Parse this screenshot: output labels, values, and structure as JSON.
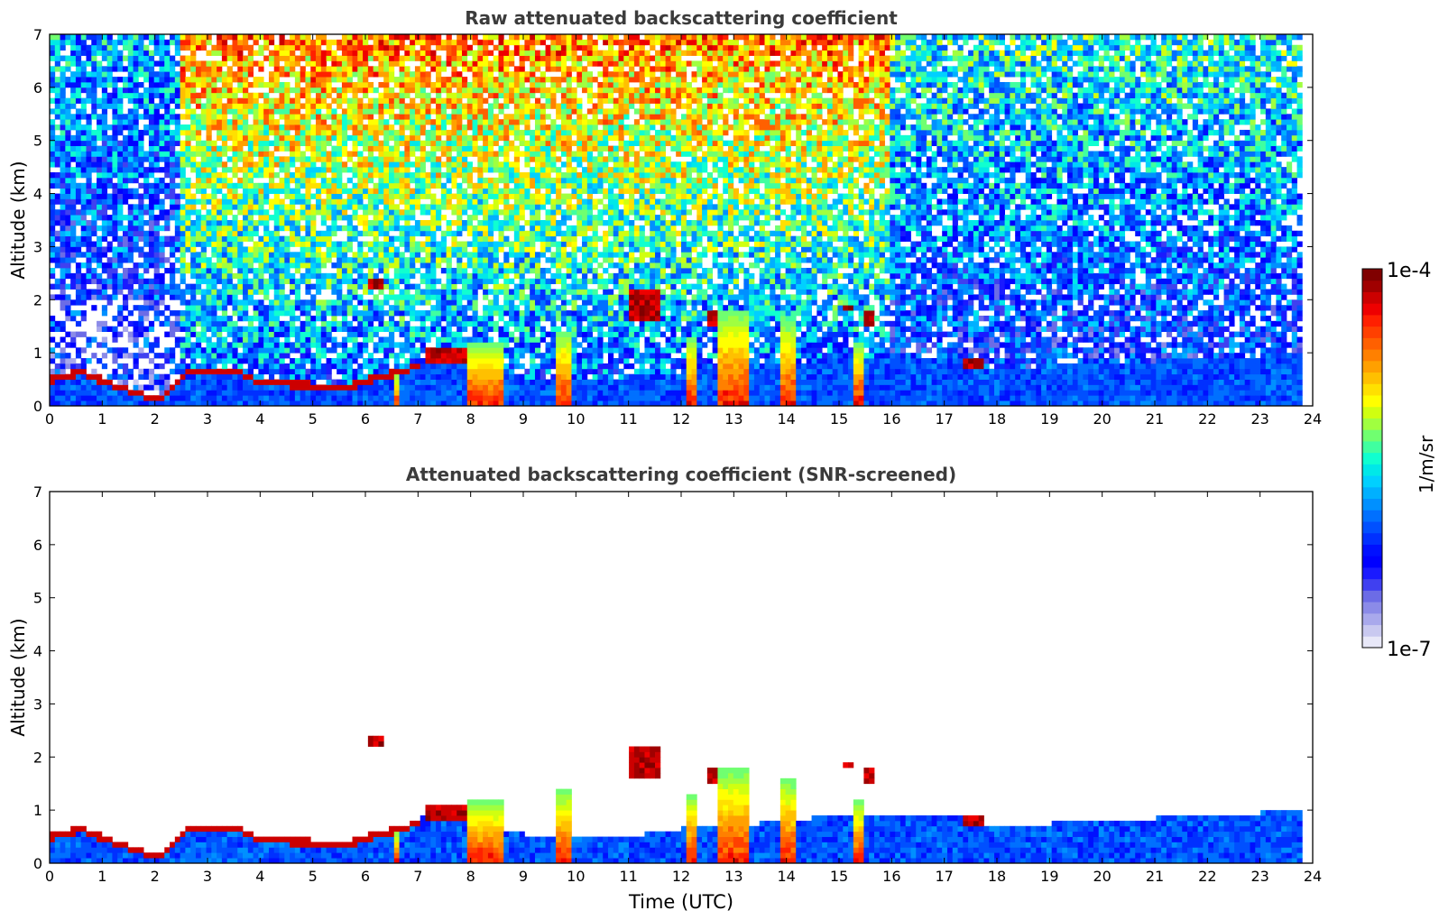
{
  "chart_data": [
    {
      "type": "heatmap",
      "title": "Raw attenuated backscattering coefficient",
      "xlabel": "",
      "ylabel": "Altitude (km)",
      "xlim": [
        0,
        24
      ],
      "ylim": [
        0,
        7
      ],
      "xticks": [
        "0",
        "1",
        "2",
        "3",
        "4",
        "5",
        "6",
        "7",
        "8",
        "9",
        "10",
        "11",
        "12",
        "13",
        "14",
        "15",
        "16",
        "17",
        "18",
        "19",
        "20",
        "21",
        "22",
        "23",
        "24"
      ],
      "yticks": [
        "0",
        "1",
        "2",
        "3",
        "4",
        "5",
        "6",
        "7"
      ],
      "data_end_time": 23.8,
      "colorscale": "jet (log)",
      "screened": false,
      "boundary_layer_top_km": [
        [
          0,
          0.55
        ],
        [
          0.6,
          0.7
        ],
        [
          1.2,
          0.45
        ],
        [
          1.8,
          0.25
        ],
        [
          2.2,
          0.25
        ],
        [
          2.6,
          0.7
        ],
        [
          3.5,
          0.75
        ],
        [
          4,
          0.5
        ],
        [
          5,
          0.45
        ],
        [
          5.8,
          0.45
        ],
        [
          6.2,
          0.6
        ],
        [
          6.7,
          0.7
        ],
        [
          7.2,
          0.95
        ],
        [
          8,
          0.85
        ],
        [
          9,
          0.55
        ],
        [
          10,
          0.45
        ],
        [
          11,
          0.5
        ],
        [
          12,
          0.65
        ],
        [
          13,
          0.7
        ],
        [
          14,
          0.8
        ],
        [
          15,
          0.9
        ],
        [
          16,
          0.95
        ],
        [
          17,
          0.95
        ],
        [
          18,
          0.7
        ],
        [
          19,
          0.75
        ],
        [
          20,
          0.8
        ],
        [
          21,
          0.85
        ],
        [
          22,
          0.9
        ],
        [
          23,
          0.95
        ],
        [
          23.8,
          1.0
        ]
      ],
      "cloud_layers": [
        {
          "start": 6.05,
          "end": 6.35,
          "base_km": 2.2,
          "top_km": 2.35
        },
        {
          "start": 7.1,
          "end": 8.0,
          "base_km": 0.8,
          "top_km": 1.05
        },
        {
          "start": 11.0,
          "end": 11.6,
          "base_km": 1.6,
          "top_km": 2.2
        },
        {
          "start": 12.5,
          "end": 13.2,
          "base_km": 1.5,
          "top_km": 1.8
        },
        {
          "start": 15.05,
          "end": 15.3,
          "base_km": 1.8,
          "top_km": 1.95
        },
        {
          "start": 15.5,
          "end": 15.7,
          "base_km": 1.5,
          "top_km": 1.8
        },
        {
          "start": 17.4,
          "end": 17.75,
          "base_km": 0.75,
          "top_km": 0.9
        }
      ],
      "precipitation_shafts": [
        {
          "start": 7.9,
          "end": 8.6,
          "top_km": 1.2
        },
        {
          "start": 9.6,
          "end": 9.9,
          "top_km": 1.4
        },
        {
          "start": 12.7,
          "end": 13.3,
          "top_km": 1.8
        },
        {
          "start": 13.9,
          "end": 14.2,
          "top_km": 1.6
        },
        {
          "start": 15.3,
          "end": 15.45,
          "top_km": 1.2
        },
        {
          "start": 6.5,
          "end": 6.65,
          "top_km": 0.6
        },
        {
          "start": 12.1,
          "end": 12.25,
          "top_km": 1.3
        }
      ]
    },
    {
      "type": "heatmap",
      "title": "Attenuated backscattering coefficient (SNR-screened)",
      "xlabel": "Time (UTC)",
      "ylabel": "Altitude (km)",
      "xlim": [
        0,
        24
      ],
      "ylim": [
        0,
        7
      ],
      "xticks": [
        "0",
        "1",
        "2",
        "3",
        "4",
        "5",
        "6",
        "7",
        "8",
        "9",
        "10",
        "11",
        "12",
        "13",
        "14",
        "15",
        "16",
        "17",
        "18",
        "19",
        "20",
        "21",
        "22",
        "23",
        "24"
      ],
      "yticks": [
        "0",
        "1",
        "2",
        "3",
        "4",
        "5",
        "6",
        "7"
      ],
      "data_end_time": 23.8,
      "colorscale": "jet (log)",
      "screened": true
    }
  ],
  "colorbar": {
    "label": "1/m/sr",
    "max_label": "1e-4",
    "min_label": "1e-7",
    "colors": [
      "#e8e8f8",
      "#c9c9f0",
      "#a9a9ec",
      "#8b8be8",
      "#6c6ce6",
      "#4040f0",
      "#1a1aff",
      "#0000ff",
      "#0010ff",
      "#0030ff",
      "#0050ff",
      "#0070ff",
      "#0090ff",
      "#00b0ff",
      "#00d0ff",
      "#00e8e8",
      "#10ffd0",
      "#40ffa0",
      "#70ff70",
      "#a0ff40",
      "#d0ff10",
      "#ffff00",
      "#ffe000",
      "#ffc000",
      "#ffa000",
      "#ff8000",
      "#ff6000",
      "#ff4000",
      "#ff2000",
      "#ee0000",
      "#cc0000",
      "#a00000",
      "#800000"
    ]
  }
}
